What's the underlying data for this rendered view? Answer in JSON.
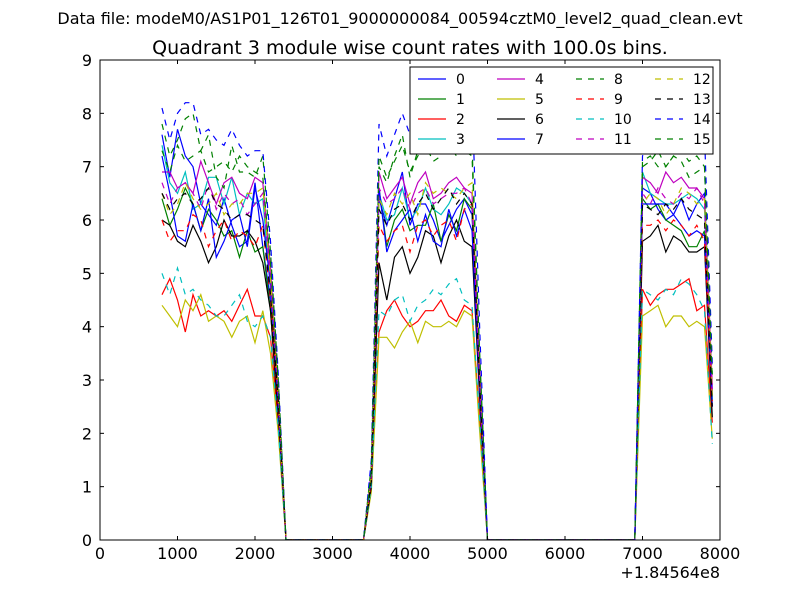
{
  "suptitle": "Data file: modeM0/AS1P01_126T01_9000000084_00594cztM0_level2_quad_clean.evt",
  "colors": [
    "#0000ff",
    "#008000",
    "#ff0000",
    "#00bfbf",
    "#bf00bf",
    "#bfbf00",
    "#000000"
  ],
  "chart_data": {
    "type": "line",
    "title": "Quadrant 3 module wise count rates with 100.0s bins.",
    "xlabel": "",
    "ylabel": "",
    "x_offset_label": "+1.84564e8",
    "xlim": [
      0,
      8000
    ],
    "ylim": [
      0,
      9
    ],
    "xticks": [
      0,
      1000,
      2000,
      3000,
      4000,
      5000,
      6000,
      7000,
      8000
    ],
    "yticks": [
      0,
      1,
      2,
      3,
      4,
      5,
      6,
      7,
      8,
      9
    ],
    "legend_location": "top-right",
    "x": [
      800,
      900,
      1000,
      1100,
      1200,
      1300,
      1400,
      1500,
      1600,
      1700,
      1800,
      1900,
      2000,
      2100,
      2200,
      2300,
      2400,
      2500,
      3400,
      3500,
      3600,
      3700,
      3800,
      3900,
      4000,
      4100,
      4200,
      4300,
      4400,
      4500,
      4600,
      4700,
      4800,
      4900,
      5000,
      5100,
      6900,
      7000,
      7100,
      7200,
      7300,
      7400,
      7500,
      7600,
      7700,
      7800,
      7900
    ],
    "series": [
      {
        "name": "0",
        "style": "solid",
        "values": [
          7.6,
          6.8,
          7.7,
          7.2,
          7.0,
          6.3,
          6.1,
          5.9,
          6.4,
          5.9,
          5.5,
          5.6,
          6.7,
          5.5,
          4.5,
          2.5,
          0,
          0,
          0,
          1.2,
          6.4,
          5.9,
          6.4,
          6.9,
          5.9,
          6.3,
          6.3,
          6.0,
          5.6,
          5.9,
          6.2,
          6.4,
          6.1,
          3.0,
          0,
          0,
          0,
          6.6,
          6.5,
          6.2,
          6.0,
          6.1,
          6.4,
          6.0,
          6.3,
          6.5,
          2.8
        ]
      },
      {
        "name": "1",
        "style": "solid",
        "values": [
          6.4,
          5.9,
          6.2,
          6.6,
          6.3,
          5.8,
          6.2,
          6.0,
          5.7,
          5.8,
          5.3,
          5.8,
          5.4,
          5.5,
          4.3,
          2.3,
          0,
          0,
          0,
          1.1,
          6.6,
          5.5,
          6.0,
          6.2,
          5.8,
          5.9,
          5.9,
          6.3,
          5.6,
          6.1,
          5.8,
          6.4,
          6.2,
          2.7,
          0,
          0,
          0,
          6.4,
          6.2,
          6.3,
          6.0,
          5.9,
          5.8,
          5.5,
          5.5,
          5.8,
          2.6
        ]
      },
      {
        "name": "2",
        "style": "solid",
        "values": [
          4.6,
          4.9,
          4.5,
          3.9,
          4.6,
          4.2,
          4.3,
          4.2,
          4.3,
          4.1,
          4.4,
          4.7,
          4.2,
          4.2,
          3.8,
          2.2,
          0,
          0,
          0,
          1.0,
          3.9,
          4.3,
          4.5,
          4.2,
          4.0,
          4.1,
          4.3,
          4.3,
          4.5,
          4.2,
          4.1,
          4.4,
          4.3,
          2.2,
          0,
          0,
          0,
          4.7,
          4.4,
          4.6,
          4.7,
          4.7,
          4.8,
          4.9,
          4.3,
          4.4,
          2.2
        ]
      },
      {
        "name": "3",
        "style": "solid",
        "values": [
          7.4,
          6.7,
          6.5,
          6.9,
          6.2,
          6.3,
          6.8,
          6.8,
          6.3,
          6.8,
          6.1,
          6.5,
          6.3,
          6.4,
          4.7,
          2.6,
          0,
          0,
          0,
          1.2,
          6.5,
          6.0,
          6.1,
          6.6,
          6.0,
          6.2,
          6.6,
          6.2,
          6.1,
          6.3,
          6.6,
          6.5,
          6.3,
          3.0,
          0,
          0,
          0,
          6.9,
          6.5,
          6.4,
          6.3,
          6.3,
          6.4,
          6.5,
          6.4,
          6.2,
          2.6
        ]
      },
      {
        "name": "4",
        "style": "solid",
        "values": [
          6.9,
          6.9,
          6.6,
          6.7,
          6.5,
          7.1,
          6.7,
          6.3,
          6.7,
          6.8,
          6.5,
          6.4,
          6.8,
          6.7,
          5.1,
          2.8,
          0,
          0,
          0,
          1.3,
          6.9,
          6.4,
          6.6,
          6.8,
          6.3,
          6.7,
          6.9,
          6.4,
          6.5,
          6.7,
          6.8,
          6.6,
          6.5,
          3.2,
          0,
          0,
          0,
          6.8,
          6.7,
          6.5,
          6.9,
          6.7,
          6.8,
          6.6,
          6.6,
          6.4,
          2.9
        ]
      },
      {
        "name": "5",
        "style": "solid",
        "values": [
          4.4,
          4.2,
          4.0,
          4.5,
          4.3,
          4.6,
          4.1,
          4.2,
          4.1,
          3.8,
          4.1,
          4.2,
          3.7,
          4.3,
          3.5,
          2.0,
          0,
          0,
          0,
          0.9,
          3.8,
          3.8,
          3.6,
          3.9,
          4.1,
          3.7,
          4.1,
          4.0,
          4.0,
          4.1,
          4.0,
          4.3,
          4.2,
          2.0,
          0,
          0,
          0,
          4.2,
          4.3,
          4.4,
          4.0,
          4.2,
          4.2,
          4.0,
          4.1,
          4.0,
          1.9
        ]
      },
      {
        "name": "6",
        "style": "solid",
        "values": [
          6.0,
          5.9,
          5.6,
          5.5,
          5.9,
          5.6,
          5.2,
          5.5,
          6.0,
          5.7,
          5.7,
          5.8,
          5.6,
          5.2,
          4.3,
          2.3,
          0,
          0,
          0,
          1.0,
          5.2,
          4.5,
          5.3,
          5.5,
          5.0,
          5.3,
          5.8,
          5.7,
          5.2,
          5.7,
          6.0,
          5.6,
          5.5,
          2.6,
          0,
          0,
          0,
          5.6,
          5.7,
          5.9,
          5.4,
          5.7,
          5.6,
          5.4,
          5.4,
          5.5,
          2.3
        ]
      },
      {
        "name": "7",
        "style": "solid",
        "values": [
          7.2,
          6.5,
          5.7,
          5.6,
          6.3,
          5.8,
          6.4,
          5.3,
          5.6,
          6.0,
          6.1,
          5.5,
          6.6,
          6.0,
          4.8,
          2.5,
          0,
          0,
          0,
          1.2,
          6.6,
          5.4,
          5.8,
          6.0,
          6.2,
          5.6,
          6.1,
          5.6,
          5.5,
          6.2,
          5.7,
          6.2,
          5.8,
          2.8,
          0,
          0,
          0,
          6.3,
          6.3,
          6.3,
          6.3,
          6.1,
          5.9,
          5.7,
          5.8,
          5.7,
          2.5
        ]
      },
      {
        "name": "8",
        "style": "dashed",
        "values": [
          7.8,
          7.2,
          7.5,
          7.9,
          8.0,
          7.3,
          7.6,
          6.8,
          6.6,
          7.4,
          6.9,
          6.9,
          6.8,
          7.2,
          5.4,
          3.0,
          0,
          0,
          0,
          1.4,
          7.0,
          6.7,
          7.2,
          7.6,
          6.8,
          7.3,
          7.5,
          7.3,
          7.4,
          7.4,
          7.2,
          7.5,
          7.4,
          3.4,
          0,
          0,
          0,
          7.1,
          7.2,
          7.0,
          7.0,
          7.2,
          7.1,
          6.8,
          6.9,
          7.0,
          3.1
        ]
      },
      {
        "name": "9",
        "style": "dashed",
        "values": [
          6.0,
          5.6,
          5.8,
          5.8,
          6.1,
          6.0,
          5.5,
          5.8,
          6.0,
          5.6,
          5.8,
          5.7,
          5.5,
          5.9,
          4.5,
          2.5,
          0,
          0,
          0,
          1.1,
          5.9,
          5.6,
          5.8,
          5.9,
          5.4,
          5.9,
          6.0,
          5.7,
          5.9,
          6.0,
          5.6,
          6.2,
          6.3,
          2.9,
          0,
          0,
          0,
          5.9,
          5.9,
          6.0,
          5.8,
          6.0,
          5.9,
          5.7,
          5.9,
          5.6,
          2.6
        ]
      },
      {
        "name": "10",
        "style": "dashed",
        "values": [
          5.0,
          4.6,
          5.1,
          4.6,
          4.7,
          4.5,
          4.4,
          4.2,
          4.2,
          4.4,
          4.6,
          4.1,
          4.0,
          4.2,
          3.8,
          2.1,
          0,
          0,
          0,
          1.0,
          4.3,
          4.2,
          4.5,
          4.6,
          4.1,
          4.4,
          4.5,
          4.7,
          4.6,
          4.8,
          4.9,
          4.5,
          4.4,
          2.2,
          0,
          0,
          0,
          4.7,
          4.6,
          4.5,
          4.7,
          4.6,
          4.9,
          4.8,
          4.6,
          4.3,
          1.8
        ]
      },
      {
        "name": "11",
        "style": "dashed",
        "values": [
          6.7,
          6.3,
          6.6,
          6.7,
          6.5,
          6.2,
          6.7,
          6.2,
          6.5,
          6.3,
          6.4,
          6.1,
          6.3,
          6.5,
          4.9,
          2.7,
          0,
          0,
          0,
          1.2,
          6.6,
          6.3,
          6.4,
          6.6,
          6.2,
          6.5,
          6.6,
          6.3,
          6.4,
          6.5,
          6.5,
          6.6,
          6.3,
          3.0,
          0,
          0,
          0,
          6.5,
          6.3,
          6.6,
          6.4,
          6.3,
          6.5,
          6.4,
          6.6,
          6.3,
          2.8
        ]
      },
      {
        "name": "12",
        "style": "dashed",
        "values": [
          6.5,
          6.1,
          6.3,
          6.7,
          6.4,
          6.2,
          6.3,
          6.5,
          6.1,
          6.3,
          6.3,
          6.5,
          6.5,
          6.6,
          4.9,
          2.7,
          0,
          0,
          0,
          1.2,
          6.4,
          6.1,
          6.5,
          6.3,
          6.5,
          6.1,
          6.7,
          6.5,
          6.6,
          6.5,
          6.4,
          6.6,
          6.7,
          3.0,
          0,
          0,
          0,
          6.3,
          6.5,
          6.4,
          6.1,
          6.3,
          6.6,
          6.5,
          6.3,
          6.4,
          2.7
        ]
      },
      {
        "name": "13",
        "style": "dashed",
        "values": [
          6.5,
          6.2,
          6.4,
          6.5,
          6.3,
          6.4,
          6.6,
          6.3,
          6.2,
          6.0,
          6.1,
          6.1,
          6.0,
          5.9,
          4.6,
          2.6,
          0,
          0,
          0,
          1.1,
          6.2,
          5.9,
          6.2,
          6.3,
          6.0,
          6.3,
          6.5,
          6.2,
          6.4,
          6.6,
          6.3,
          6.5,
          6.3,
          2.9,
          0,
          0,
          0,
          6.3,
          6.2,
          6.1,
          6.3,
          6.2,
          6.4,
          6.2,
          6.1,
          6.0,
          2.5
        ]
      },
      {
        "name": "14",
        "style": "dashed",
        "values": [
          8.1,
          7.5,
          8.0,
          8.2,
          8.2,
          7.6,
          7.7,
          7.5,
          7.4,
          7.7,
          7.4,
          7.2,
          7.3,
          7.3,
          5.6,
          3.1,
          0,
          0,
          0,
          1.5,
          7.8,
          7.2,
          7.6,
          8.0,
          7.6,
          7.9,
          8.3,
          7.8,
          8.0,
          8.3,
          8.0,
          8.4,
          8.3,
          3.9,
          0,
          0,
          0,
          7.2,
          7.5,
          7.6,
          7.4,
          7.3,
          7.7,
          7.5,
          7.4,
          7.6,
          3.3
        ]
      },
      {
        "name": "15",
        "style": "dashed",
        "values": [
          7.3,
          6.9,
          7.4,
          7.1,
          7.2,
          7.3,
          6.9,
          7.0,
          7.1,
          6.9,
          7.2,
          7.0,
          6.9,
          6.8,
          5.2,
          2.9,
          0,
          0,
          0,
          1.3,
          7.2,
          6.8,
          7.1,
          7.4,
          6.9,
          7.2,
          7.4,
          7.1,
          7.2,
          7.6,
          7.3,
          7.3,
          7.2,
          3.4,
          0,
          0,
          0,
          7.0,
          7.1,
          7.3,
          7.0,
          7.2,
          7.3,
          7.1,
          7.2,
          7.0,
          3.0
        ]
      }
    ]
  }
}
